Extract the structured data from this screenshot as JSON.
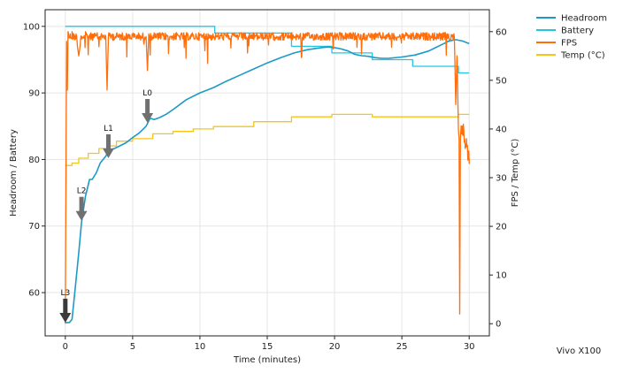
{
  "device_label": "Vivo X100",
  "colors": {
    "headroom": "#1c9ac7",
    "battery": "#1ec8e0",
    "fps": "#ff6e0a",
    "temp": "#f5c518",
    "arrow": "#707070",
    "arrow_last": "#3a3a3a",
    "grid": "#e6e6e6"
  },
  "chart_data": {
    "type": "line",
    "xlabel": "Time (minutes)",
    "ylabel_left": "Headroom / Battery",
    "ylabel_right": "FPS / Temp (°C)",
    "xlim": [
      -1.5,
      31.5
    ],
    "ylim_left": [
      53.5,
      102.5
    ],
    "ylim_right": [
      -2.5,
      64.5
    ],
    "x_ticks": [
      0,
      5,
      10,
      15,
      20,
      25,
      30
    ],
    "y_ticks_left": [
      60,
      70,
      80,
      90,
      100
    ],
    "y_ticks_right": [
      0,
      10,
      20,
      30,
      40,
      50,
      60
    ],
    "grid": true,
    "legend_placement": "outside-top-right",
    "series": [
      {
        "name": "Headroom",
        "axis": "left",
        "color_key": "headroom",
        "x": [
          0,
          0.3,
          0.5,
          0.7,
          1.0,
          1.2,
          1.5,
          1.8,
          2.0,
          2.3,
          2.6,
          3.0,
          3.3,
          3.6,
          4.0,
          4.5,
          5.0,
          5.5,
          6.0,
          6.3,
          6.6,
          7.0,
          7.5,
          8.0,
          9.0,
          10.0,
          11.0,
          12.0,
          13.0,
          14.0,
          15.0,
          16.0,
          17.0,
          18.0,
          19.0,
          19.5,
          20.0,
          20.5,
          21.0,
          21.5,
          22.0,
          22.5,
          23.0,
          23.5,
          24.0,
          25.0,
          26.0,
          27.0,
          27.5,
          28.0,
          28.5,
          29.0,
          29.5,
          30.0
        ],
        "y": [
          55.5,
          55.5,
          56.0,
          60.0,
          66.0,
          70.5,
          74.5,
          77.0,
          77.0,
          78.0,
          79.5,
          80.5,
          81.5,
          81.6,
          82.0,
          82.5,
          83.3,
          84.0,
          85.0,
          86.2,
          86.0,
          86.3,
          86.8,
          87.5,
          89.0,
          90.0,
          90.8,
          91.8,
          92.7,
          93.6,
          94.5,
          95.3,
          96.0,
          96.5,
          96.8,
          96.9,
          96.8,
          96.6,
          96.3,
          95.8,
          95.6,
          95.5,
          95.3,
          95.2,
          95.2,
          95.4,
          95.7,
          96.3,
          96.8,
          97.3,
          97.8,
          98.0,
          97.8,
          97.4
        ]
      },
      {
        "name": "Battery",
        "axis": "left",
        "color_key": "battery",
        "step": true,
        "x": [
          0,
          11.1,
          16.8,
          19.8,
          22.8,
          25.8,
          29.2,
          30.0
        ],
        "y": [
          100,
          99,
          97,
          96,
          95,
          94,
          93,
          93
        ]
      },
      {
        "name": "FPS",
        "axis": "right",
        "color_key": "fps",
        "noisy": true,
        "x": [
          0,
          0.05,
          0.1,
          0.15,
          0.2,
          0.3,
          0.5,
          0.8,
          1.0,
          1.2,
          1.5,
          2.0,
          3.0,
          3.1,
          3.2,
          3.5,
          4.0,
          5.0,
          6.0,
          6.1,
          6.2,
          7.0,
          10.0,
          15.0,
          20.0,
          25.0,
          28.9,
          29.0,
          29.1,
          29.2,
          29.25,
          29.3,
          29.35,
          29.4,
          29.5,
          29.6,
          29.7,
          29.8,
          29.9,
          30.0
        ],
        "y": [
          0,
          30,
          58,
          48,
          60,
          59,
          60,
          59,
          55,
          59,
          60,
          59.5,
          59,
          48,
          59,
          59.5,
          59.5,
          59.5,
          59,
          52,
          59,
          59.5,
          59.5,
          59.5,
          59.5,
          59.5,
          59,
          45,
          55,
          40,
          38,
          2,
          38,
          40,
          39,
          40,
          36,
          38,
          35,
          34
        ]
      },
      {
        "name": "Temp (°C)",
        "axis": "right",
        "color_key": "temp",
        "step": true,
        "x": [
          0,
          0.5,
          1.0,
          1.7,
          2.5,
          3.3,
          3.8,
          5.0,
          6.5,
          8.0,
          9.5,
          11.0,
          14.0,
          16.8,
          19.8,
          22.8,
          26.0,
          29.2,
          30.0
        ],
        "y": [
          32.5,
          33,
          34,
          35,
          36,
          36.5,
          37.5,
          38,
          39,
          39.5,
          40,
          40.5,
          41.5,
          42.5,
          43,
          42.5,
          42.5,
          43,
          43
        ]
      }
    ],
    "annotations": [
      {
        "label": "L0",
        "x": 6.1,
        "y": 85.5
      },
      {
        "label": "L1",
        "x": 3.2,
        "y": 80.2
      },
      {
        "label": "L2",
        "x": 1.2,
        "y": 70.8
      },
      {
        "label": "L3",
        "x": 0.0,
        "y": 55.5
      }
    ]
  }
}
